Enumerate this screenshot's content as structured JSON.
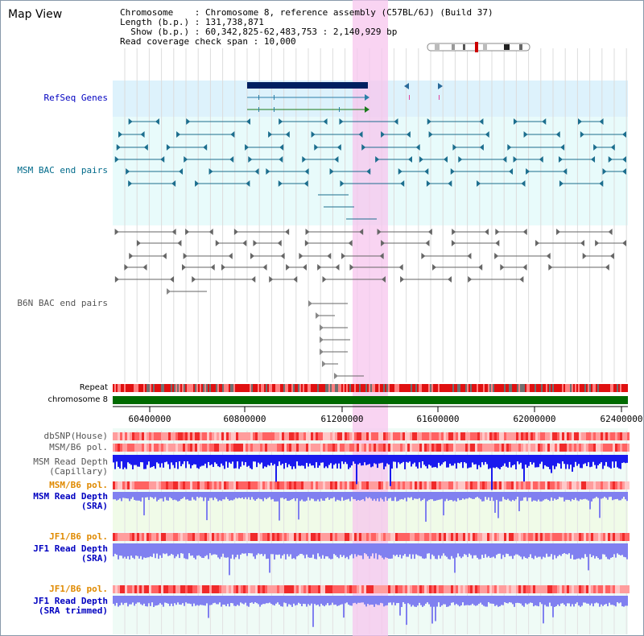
{
  "app": {
    "title": "Map View"
  },
  "info": {
    "chromosome_key": "Chromosome",
    "chromosome_value": "Chromosome 8, reference assembly (C57BL/6J) (Build 37)",
    "length_key": "Length (b.p.)",
    "length_value": "131,738,871",
    "show_key": "Show (b.p.)",
    "show_value": "60,342,825-62,483,753 : 2,140,929 bp",
    "coverage_key": "Read coverage check span",
    "coverage_value": "10,000"
  },
  "tracks": {
    "refseq": "RefSeq Genes",
    "msm_bac": "MSM BAC end pairs",
    "b6n_bac": "B6N BAC end pairs",
    "repeat": "Repeat",
    "chromosome": "chromosome 8",
    "dbsnp": "dbSNP(House)",
    "msm_b6_pol_1": "MSM/B6 pol.",
    "msm_read_depth_cap_1": "MSM Read Depth",
    "msm_read_depth_cap_2": "(Capillary)",
    "msm_b6_pol_2": "MSM/B6 pol.",
    "msm_read_depth_sra_1": "MSM Read Depth",
    "msm_read_depth_sra_2": "(SRA)",
    "jf1_b6_pol_1": "JF1/B6 pol.",
    "jf1_read_depth_sra_1": "JF1 Read Depth",
    "jf1_read_depth_sra_2": "(SRA)",
    "jf1_b6_pol_2": "JF1/B6 pol.",
    "jf1_read_depth_trim_1": "JF1 Read Depth",
    "jf1_read_depth_trim_2": "(SRA trimmed)"
  },
  "axis": {
    "ticks": [
      "60400000",
      "60800000",
      "61200000",
      "61600000",
      "62000000",
      "62400000"
    ]
  },
  "colors": {
    "refseq_bg": "#ddf2fc",
    "msm_bac_bg": "#e8fbfb",
    "lower_bg": "#f0fbfb",
    "highlight": "#f7c6ee",
    "label_blue": "#0000c0",
    "label_teal": "#006a8a",
    "label_orange": "#e08a00",
    "chromosome_bar": "#006a00",
    "depth_dark": "#1a1aee",
    "depth_light": "#8080f0"
  }
}
